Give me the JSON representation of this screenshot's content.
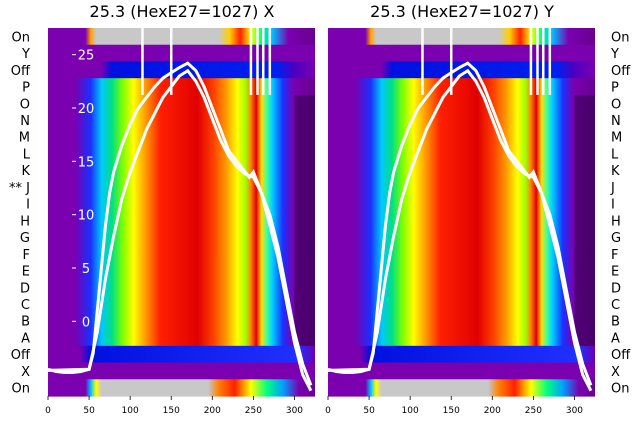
{
  "chart_data": {
    "type": "heatmap",
    "panels": [
      {
        "title": "25.3 (HexE27=1027) X",
        "side": "left"
      },
      {
        "title": "25.3 (HexE27=1027) Y",
        "side": "right"
      }
    ],
    "row_labels": [
      "On",
      "Y",
      "Off",
      "P",
      "O",
      "N",
      "M",
      "L",
      "K",
      "J",
      "I",
      "H",
      "G",
      "F",
      "E",
      "D",
      "C",
      "B",
      "A",
      "Off",
      "X",
      "On"
    ],
    "left_row_labels": [
      "On",
      "Y",
      "Off",
      "P",
      "O",
      "N",
      "M",
      "L",
      "K",
      "** J",
      "I",
      "H",
      "G",
      "F",
      "E",
      "D",
      "C",
      "B",
      "A",
      "Off",
      "X",
      "On"
    ],
    "x_ticks": [
      0,
      50,
      100,
      150,
      200,
      250,
      300
    ],
    "xlim": [
      0,
      325
    ],
    "overlay_y_ticks": [
      0,
      5,
      10,
      15,
      20,
      25
    ],
    "overlay_ylim": [
      -7,
      27.5
    ],
    "profile_x": [
      0,
      10,
      20,
      30,
      40,
      50,
      55,
      60,
      65,
      70,
      75,
      80,
      90,
      100,
      110,
      120,
      130,
      140,
      150,
      160,
      170,
      180,
      190,
      200,
      210,
      220,
      230,
      240,
      245,
      250,
      255,
      260,
      270,
      280,
      290,
      300,
      310,
      320
    ],
    "profile_y": [
      -4.5,
      -4.7,
      -4.8,
      -4.8,
      -4.7,
      -4.5,
      -3,
      1,
      5,
      9,
      12,
      14,
      16.5,
      18.5,
      20,
      21,
      22,
      22.8,
      23.3,
      23.8,
      24.2,
      23.5,
      22,
      20,
      18,
      16,
      15,
      14,
      13.5,
      14,
      13,
      12,
      10,
      7,
      3,
      -1,
      -4,
      -6
    ],
    "profile_x_alt": [
      0,
      50,
      60,
      70,
      80,
      90,
      100,
      110,
      120,
      130,
      140,
      150,
      160,
      170,
      180,
      190,
      200,
      210,
      220,
      230,
      240,
      250,
      260,
      270,
      280,
      290,
      300,
      310,
      320
    ],
    "profile_y_alt": [
      -4.6,
      -4.5,
      -1,
      4,
      8,
      11.5,
      14,
      16,
      18,
      19.5,
      21,
      22,
      23,
      23.5,
      22.5,
      21,
      19,
      17,
      15.5,
      14.5,
      13.8,
      13.5,
      12,
      9,
      6,
      2,
      -2,
      -5,
      -6.5
    ],
    "spike_x": [
      115,
      150,
      247,
      255,
      262,
      270
    ]
  }
}
